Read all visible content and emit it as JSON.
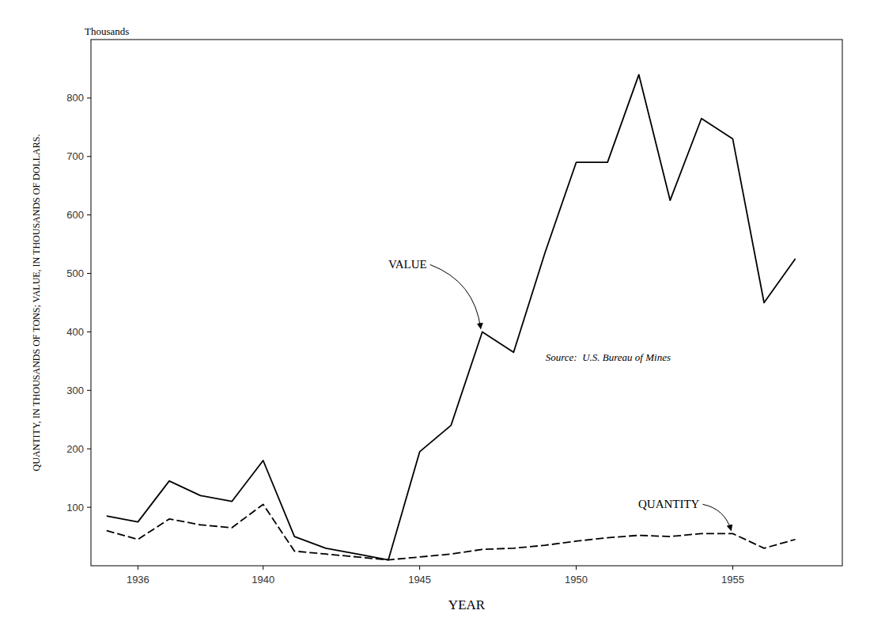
{
  "chart_data": {
    "type": "line",
    "x": [
      1935,
      1936,
      1937,
      1938,
      1939,
      1940,
      1941,
      1942,
      1943,
      1944,
      1945,
      1946,
      1947,
      1948,
      1949,
      1950,
      1951,
      1952,
      1953,
      1954,
      1955,
      1956,
      1957
    ],
    "series": [
      {
        "name": "VALUE",
        "color": "#000000",
        "line_style": "solid",
        "values": [
          85,
          75,
          145,
          120,
          110,
          180,
          50,
          30,
          20,
          10,
          195,
          240,
          400,
          365,
          535,
          690,
          690,
          840,
          625,
          765,
          730,
          450,
          525
        ]
      },
      {
        "name": "QUANTITY",
        "color": "#000000",
        "line_style": "dashed",
        "values": [
          60,
          45,
          80,
          70,
          65,
          105,
          25,
          20,
          15,
          10,
          15,
          20,
          28,
          30,
          35,
          42,
          48,
          52,
          50,
          55,
          55,
          30,
          45
        ]
      }
    ],
    "x_label": "YEAR",
    "y_label": "QUANTITY, IN THOUSANDS OF TONS; VALUE, IN THOUSANDS OF DOLLARS.",
    "annotations": [
      "Thousands",
      "Source:  U.S. Bureau of Mines"
    ],
    "xlim": [
      1934.5,
      1958.5
    ],
    "ylim": [
      0,
      900
    ],
    "xticks": [
      1936,
      1940,
      1945,
      1950,
      1955
    ],
    "yticks": [
      100,
      200,
      300,
      400,
      500,
      600,
      700,
      800
    ],
    "grid": false,
    "legend": false,
    "background_color": "#ffffff"
  }
}
